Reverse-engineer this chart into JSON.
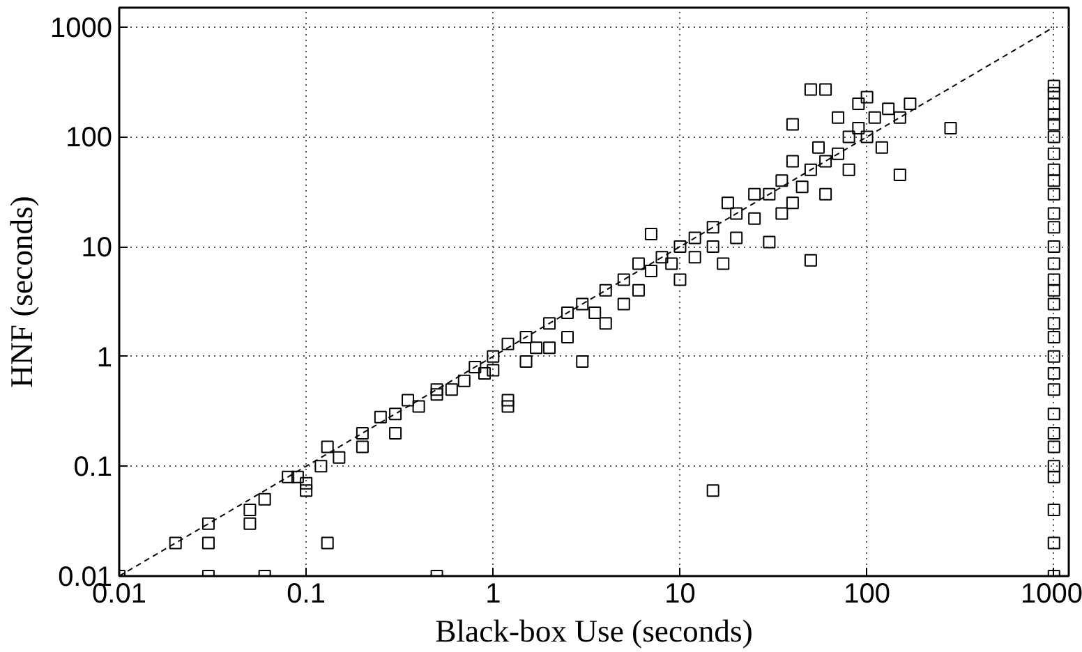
{
  "chart_data": {
    "type": "scatter",
    "xlabel": "Black-box Use (seconds)",
    "ylabel": "HNF (seconds)",
    "log": "xy",
    "grid": true,
    "xlim": [
      0.01,
      1200
    ],
    "ylim": [
      0.01,
      1500
    ],
    "xticks": [
      0.01,
      0.1,
      1,
      10,
      100,
      1000
    ],
    "yticks": [
      0.01,
      0.1,
      1,
      10,
      100,
      1000
    ],
    "series": [
      {
        "marker": "square",
        "color": "#000000",
        "x": [
          0.01,
          0.02,
          0.03,
          0.03,
          0.05,
          0.05,
          0.06,
          0.08,
          0.09,
          0.1,
          0.1,
          0.12,
          0.13,
          0.15,
          0.2,
          0.2,
          0.25,
          0.3,
          0.3,
          0.35,
          0.4,
          0.5,
          0.5,
          0.6,
          0.7,
          0.8,
          0.9,
          1,
          1,
          1.2,
          1.2,
          1.2,
          1.5,
          1.5,
          1.7,
          2,
          2,
          2.5,
          2.5,
          3,
          3,
          3.5,
          4,
          4,
          5,
          5,
          6,
          6,
          7,
          7,
          8,
          9,
          10,
          10,
          12,
          12,
          15,
          15,
          17,
          18,
          20,
          20,
          25,
          25,
          30,
          30,
          35,
          35,
          40,
          40,
          45,
          50,
          50,
          50,
          55,
          60,
          60,
          70,
          70,
          80,
          80,
          90,
          90,
          100,
          100,
          110,
          120,
          130,
          150,
          150,
          170,
          280,
          40,
          60,
          0.03,
          0.06,
          0.5,
          15,
          0.13
        ],
        "values": [
          0.01,
          0.02,
          0.02,
          0.03,
          0.03,
          0.04,
          0.05,
          0.08,
          0.08,
          0.07,
          0.06,
          0.1,
          0.15,
          0.12,
          0.15,
          0.2,
          0.28,
          0.2,
          0.3,
          0.4,
          0.35,
          0.5,
          0.45,
          0.5,
          0.6,
          0.8,
          0.7,
          1,
          0.75,
          1.3,
          0.4,
          0.35,
          1.5,
          0.9,
          1.2,
          2,
          1.2,
          2.5,
          1.5,
          3,
          0.9,
          2.5,
          4,
          2,
          5,
          3,
          7,
          4,
          13,
          6,
          8,
          7,
          10,
          5,
          12,
          8,
          15,
          10,
          7,
          25,
          20,
          12,
          30,
          18,
          30,
          11,
          40,
          20,
          60,
          25,
          35,
          50,
          7.5,
          270,
          80,
          60,
          30,
          150,
          70,
          100,
          50,
          200,
          120,
          100,
          230,
          150,
          80,
          180,
          150,
          45,
          200,
          120,
          130,
          270,
          0.01,
          0.01,
          0.01,
          0.06,
          0.02
        ]
      },
      {
        "marker": "square",
        "color": "#000000",
        "x": [
          1000,
          1000,
          1000,
          1000,
          1000,
          1000,
          1000,
          1000,
          1000,
          1000,
          1000,
          1000,
          1000,
          1000,
          1000,
          1000,
          1000,
          1000,
          1000,
          1000,
          1000,
          1000,
          1000,
          1000,
          1000,
          1000,
          1000,
          1000,
          1000,
          1000
        ],
        "values": [
          0.01,
          0.02,
          0.04,
          0.08,
          0.1,
          0.15,
          0.2,
          0.3,
          0.5,
          0.7,
          1,
          1.5,
          2,
          3,
          4,
          5,
          7,
          10,
          15,
          20,
          30,
          40,
          50,
          70,
          100,
          130,
          160,
          200,
          250,
          290
        ]
      },
      {
        "type": "line",
        "color": "#000000",
        "line_style": "dashed",
        "x": [
          0.01,
          1000
        ],
        "values": [
          0.01,
          1000
        ]
      }
    ]
  }
}
